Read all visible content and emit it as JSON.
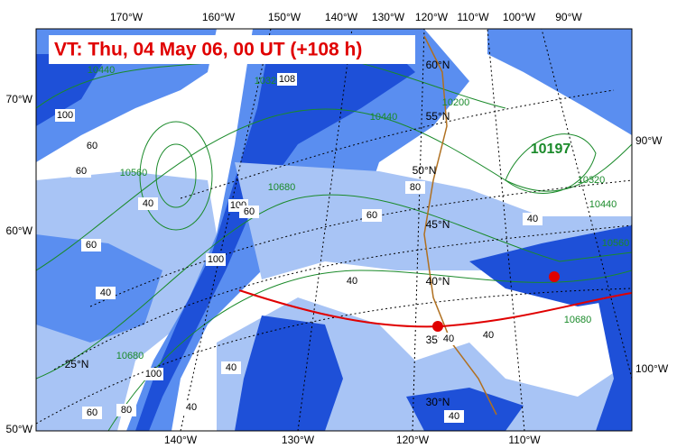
{
  "map": {
    "title": "VT:  Thu, 04 May 06, 00 UT (+108 h)",
    "top_labels": [
      "170°W",
      "160°W",
      "150°W",
      "140°W",
      "130°W",
      "120°W",
      "110°W",
      "100°W",
      "90°W"
    ],
    "left_labels": [
      "70°W",
      "60°W",
      "50°W"
    ],
    "right_labels": [
      "90°W",
      "100°W"
    ],
    "bottom_labels": [
      "140°W",
      "130°W",
      "120°W",
      "110°W"
    ],
    "lat_labels": [
      "60°N",
      "55°N",
      "50°N",
      "45°N",
      "40°N",
      "35°N",
      "30°N",
      "25°N"
    ],
    "height_labels": [
      "10440",
      "10320",
      "10200",
      "10440",
      "10197",
      "10320",
      "10440",
      "10560",
      "10680",
      "10560",
      "10680",
      "10680"
    ],
    "wind_labels": [
      "100",
      "60",
      "60",
      "108",
      "40",
      "100",
      "60",
      "80",
      "60",
      "60",
      "40",
      "40",
      "100",
      "40",
      "40",
      "40",
      "100",
      "80",
      "40",
      "40",
      "60",
      "40"
    ]
  }
}
